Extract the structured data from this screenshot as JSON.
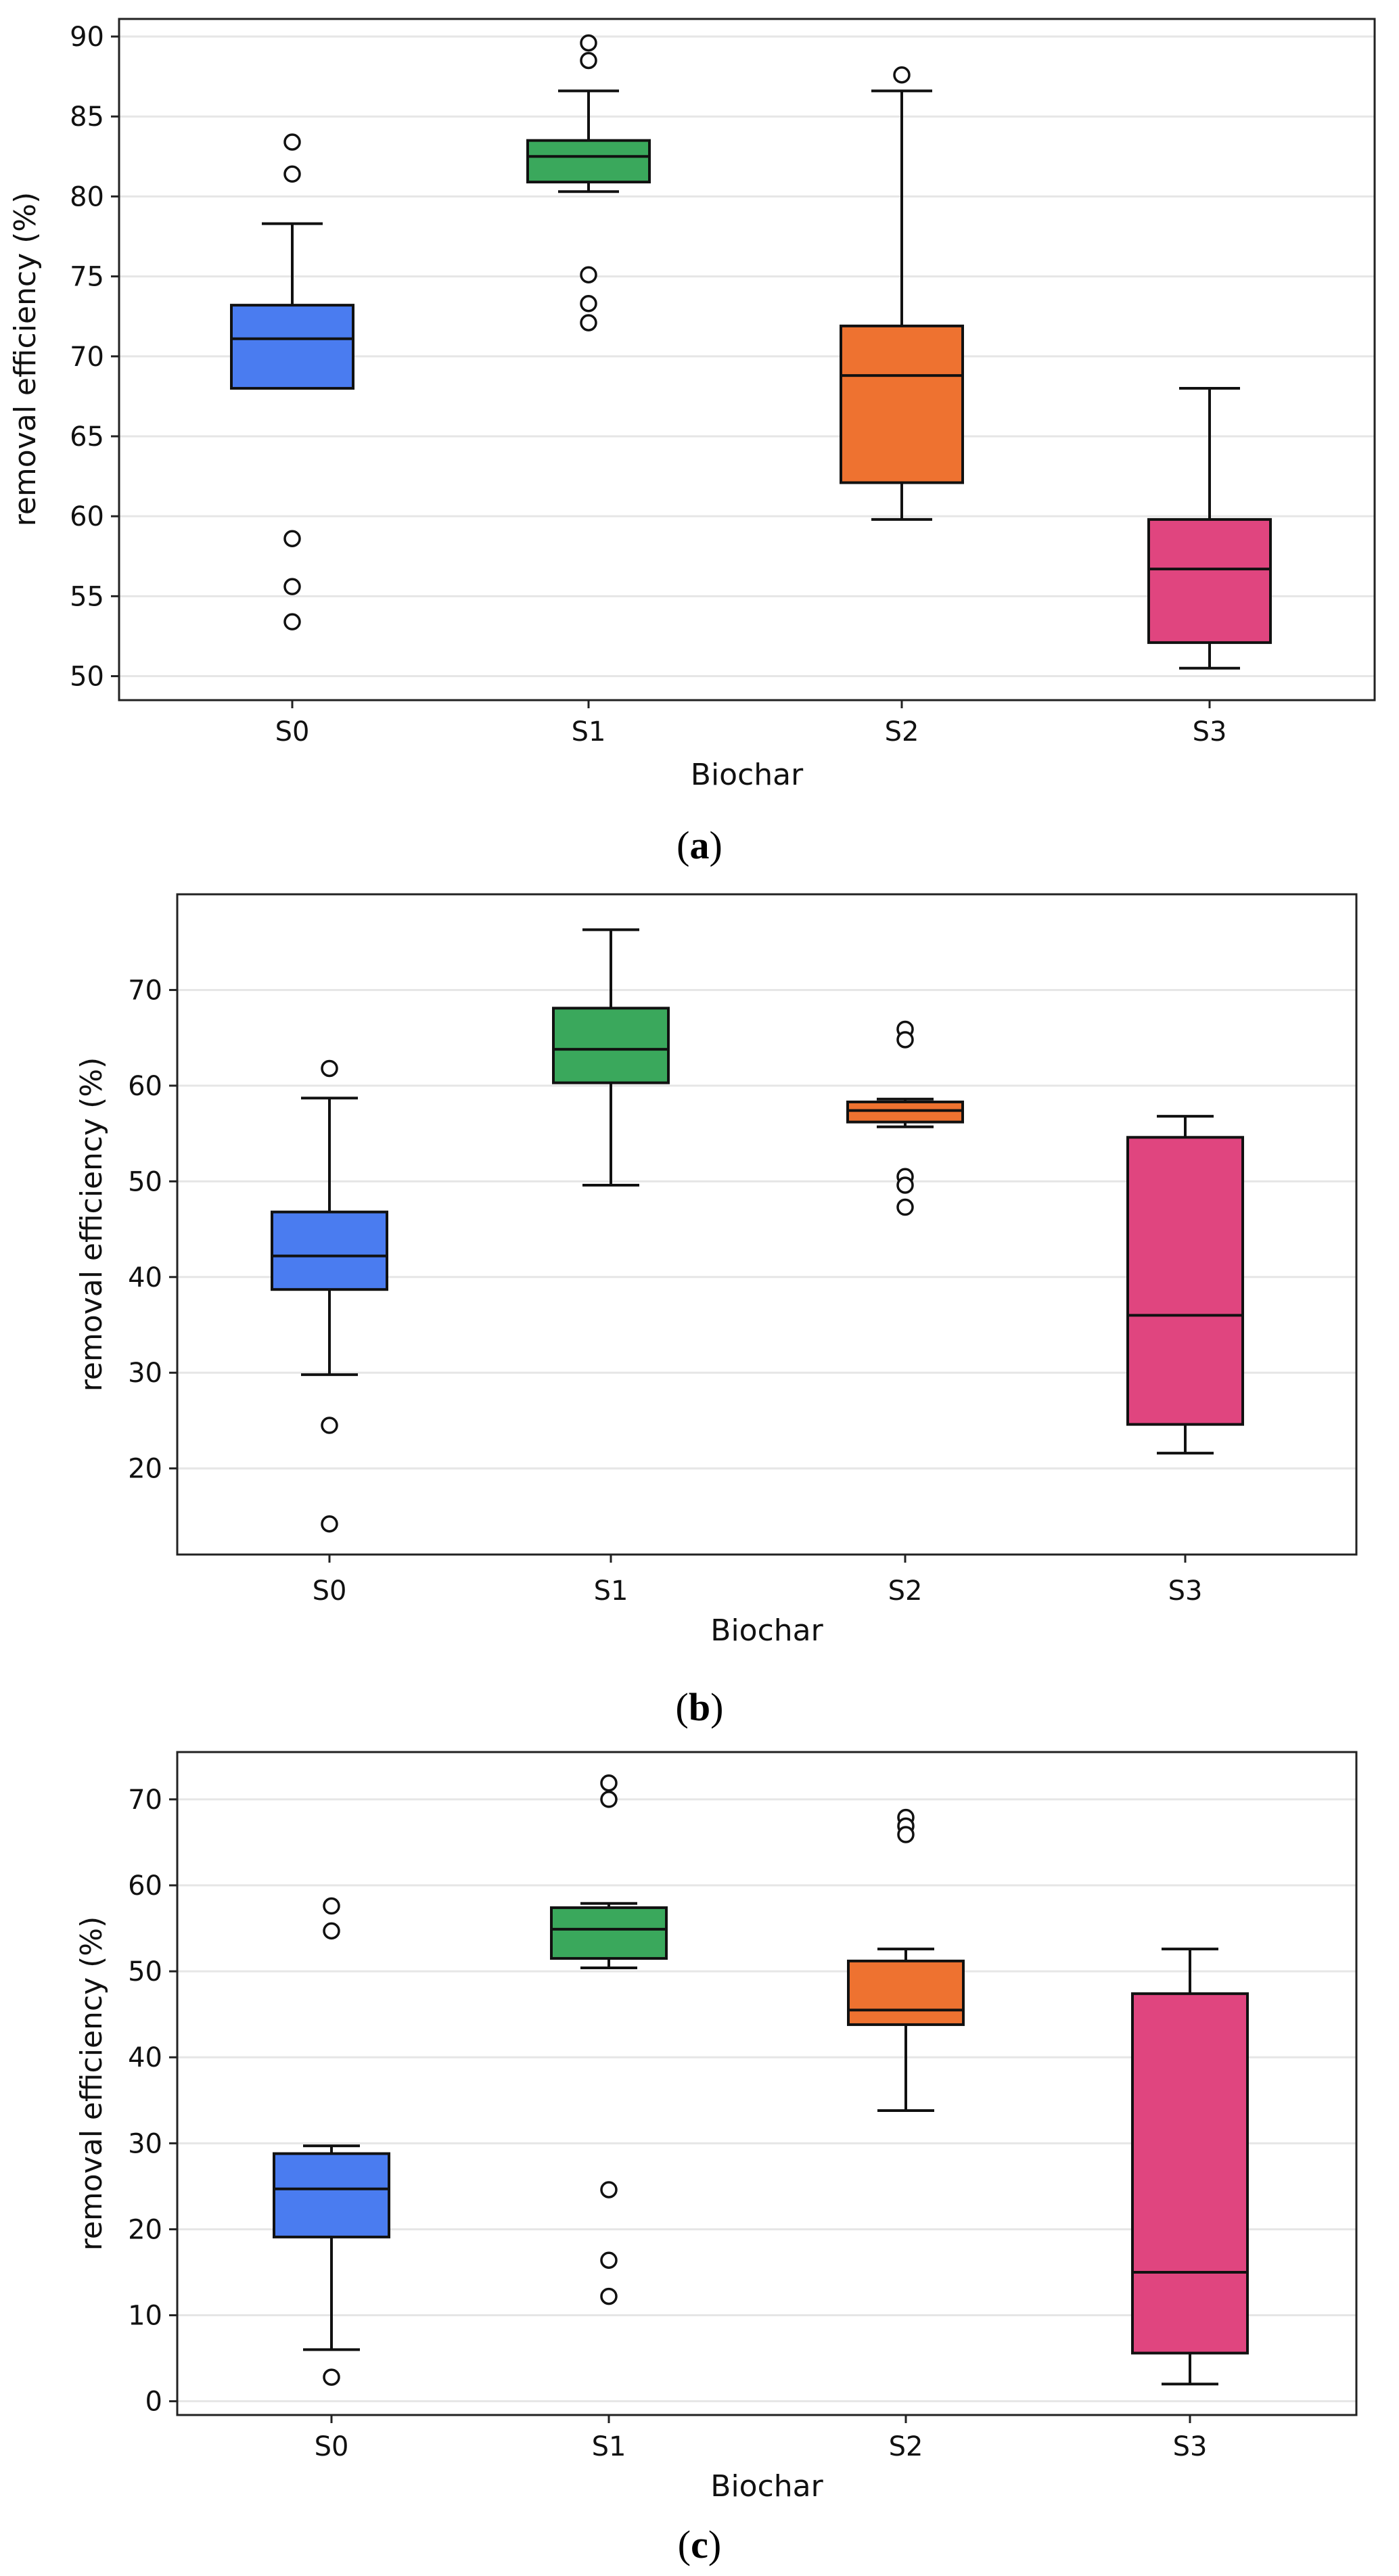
{
  "colors": {
    "S0": "#4a7cf0",
    "S1": "#3aa85c",
    "S2": "#ee7230",
    "S3": "#e0457f",
    "grid": "#e6e6e6",
    "axis": "#222222"
  },
  "chart_data": [
    {
      "type": "box",
      "caption": "a",
      "xlabel": "Biochar",
      "ylabel": "removal efficiency (%)",
      "ylim": [
        48.5,
        91.1
      ],
      "yticks": [
        50,
        55,
        60,
        65,
        70,
        75,
        80,
        85,
        90
      ],
      "yticklabels": [
        "50",
        "55",
        "60",
        "65",
        "70",
        "75",
        "80",
        "85",
        "90"
      ],
      "categories": [
        "S0",
        "S1",
        "S2",
        "S3"
      ],
      "boxes": [
        {
          "name": "S0",
          "q1": 68.0,
          "median": 71.1,
          "q3": 73.2,
          "whislo": 68.0,
          "whishi": 78.3,
          "fliers": [
            83.4,
            81.4,
            58.6,
            55.6,
            53.4
          ]
        },
        {
          "name": "S1",
          "q1": 80.9,
          "median": 82.5,
          "q3": 83.5,
          "whislo": 80.3,
          "whishi": 86.6,
          "fliers": [
            89.6,
            88.5,
            75.1,
            73.3,
            72.1
          ]
        },
        {
          "name": "S2",
          "q1": 62.1,
          "median": 68.8,
          "q3": 71.9,
          "whislo": 59.8,
          "whishi": 86.6,
          "fliers": [
            87.6
          ]
        },
        {
          "name": "S3",
          "q1": 52.1,
          "median": 56.7,
          "q3": 59.8,
          "whislo": 50.5,
          "whishi": 68.0,
          "fliers": []
        }
      ]
    },
    {
      "type": "box",
      "caption": "b",
      "xlabel": "Biochar",
      "ylabel": "removal efficiency (%)",
      "ylim": [
        11.0,
        80.0
      ],
      "yticks": [
        20,
        30,
        40,
        50,
        60,
        70
      ],
      "yticklabels": [
        "20",
        "30",
        "40",
        "50",
        "60",
        "70"
      ],
      "categories": [
        "S0",
        "S1",
        "S2",
        "S3"
      ],
      "boxes": [
        {
          "name": "S0",
          "q1": 38.7,
          "median": 42.2,
          "q3": 46.8,
          "whislo": 29.8,
          "whishi": 58.7,
          "fliers": [
            61.8,
            24.5,
            14.2
          ]
        },
        {
          "name": "S1",
          "q1": 60.3,
          "median": 63.8,
          "q3": 68.1,
          "whislo": 49.6,
          "whishi": 76.3,
          "fliers": []
        },
        {
          "name": "S2",
          "q1": 56.2,
          "median": 57.4,
          "q3": 58.3,
          "whislo": 55.7,
          "whishi": 58.6,
          "fliers": [
            65.9,
            64.8,
            50.5,
            49.6,
            47.3
          ]
        },
        {
          "name": "S3",
          "q1": 24.6,
          "median": 36.0,
          "q3": 54.6,
          "whislo": 21.6,
          "whishi": 56.8,
          "fliers": []
        }
      ]
    },
    {
      "type": "box",
      "caption": "c",
      "xlabel": "Biochar",
      "ylabel": "removal efficiency (%)",
      "ylim": [
        -1.6,
        75.5
      ],
      "yticks": [
        0,
        10,
        20,
        30,
        40,
        50,
        60,
        70
      ],
      "yticklabels": [
        "0",
        "10",
        "20",
        "30",
        "40",
        "50",
        "60",
        "70"
      ],
      "categories": [
        "S0",
        "S1",
        "S2",
        "S3"
      ],
      "boxes": [
        {
          "name": "S0",
          "q1": 19.1,
          "median": 24.7,
          "q3": 28.8,
          "whislo": 6.0,
          "whishi": 29.7,
          "fliers": [
            57.6,
            54.7,
            2.8
          ]
        },
        {
          "name": "S1",
          "q1": 51.5,
          "median": 54.9,
          "q3": 57.4,
          "whislo": 50.4,
          "whishi": 57.9,
          "fliers": [
            71.9,
            70.0,
            24.6,
            16.4,
            12.2
          ]
        },
        {
          "name": "S2",
          "q1": 43.8,
          "median": 45.5,
          "q3": 51.2,
          "whislo": 33.8,
          "whishi": 52.6,
          "fliers": [
            67.9,
            66.9,
            65.9
          ]
        },
        {
          "name": "S3",
          "q1": 5.6,
          "median": 15.0,
          "q3": 47.4,
          "whislo": 2.0,
          "whishi": 52.6,
          "fliers": []
        }
      ]
    }
  ]
}
